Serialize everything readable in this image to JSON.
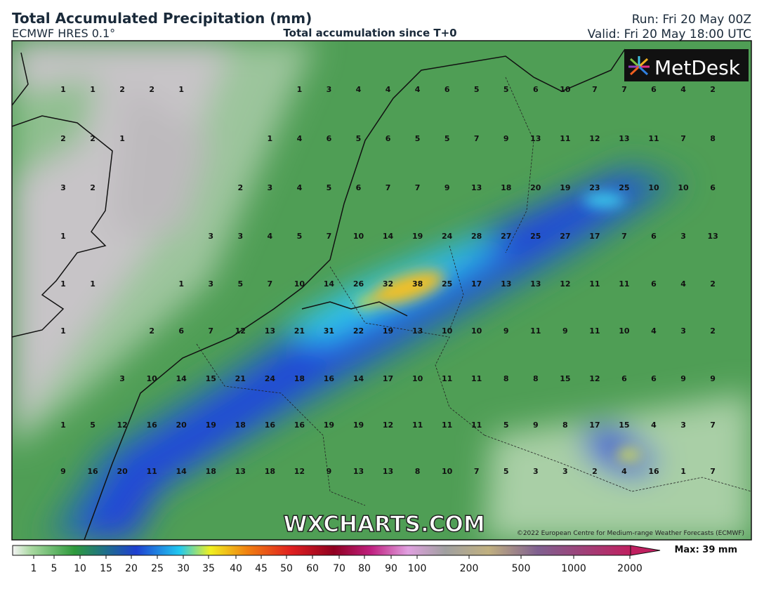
{
  "header": {
    "title": "Total Accumulated Precipitation (mm)",
    "model": "ECMWF HRES 0.1°",
    "subtitle": "Total accumulation since T+0",
    "run": "Run: Fri 20 May 00Z",
    "valid": "Valid: Fri 20 May 18:00 UTC"
  },
  "logo": "MetDesk",
  "watermark": "WXCHARTS.COM",
  "copyright": "©2022 European Centre for Medium-range Weather Forecasts (ECMWF)",
  "grid_values": [
    [
      1,
      1,
      2,
      2,
      1,
      null,
      null,
      null,
      1,
      3,
      4,
      4,
      4,
      6,
      5,
      5,
      6,
      10,
      7,
      7,
      6,
      4,
      2
    ],
    [
      2,
      2,
      1,
      null,
      null,
      null,
      null,
      1,
      4,
      6,
      5,
      6,
      5,
      5,
      7,
      9,
      13,
      11,
      12,
      13,
      11,
      7,
      8
    ],
    [
      3,
      2,
      null,
      null,
      null,
      null,
      2,
      3,
      4,
      5,
      6,
      7,
      7,
      9,
      13,
      18,
      20,
      19,
      23,
      25,
      10,
      10,
      6
    ],
    [
      1,
      null,
      null,
      null,
      null,
      3,
      3,
      4,
      5,
      7,
      10,
      14,
      19,
      24,
      28,
      27,
      25,
      27,
      17,
      7,
      6,
      3,
      13
    ],
    [
      1,
      1,
      null,
      null,
      1,
      3,
      5,
      7,
      10,
      14,
      26,
      32,
      38,
      25,
      17,
      13,
      13,
      12,
      11,
      11,
      6,
      4,
      2
    ],
    [
      1,
      null,
      null,
      2,
      6,
      7,
      12,
      13,
      21,
      31,
      22,
      19,
      13,
      10,
      10,
      9,
      11,
      9,
      11,
      10,
      4,
      3,
      2
    ],
    [
      null,
      null,
      3,
      10,
      14,
      15,
      21,
      24,
      18,
      16,
      14,
      17,
      10,
      11,
      11,
      8,
      8,
      15,
      12,
      6,
      6,
      9,
      9
    ],
    [
      1,
      5,
      12,
      16,
      20,
      19,
      18,
      16,
      16,
      19,
      19,
      12,
      11,
      11,
      11,
      5,
      9,
      8,
      17,
      15,
      4,
      3,
      7
    ],
    [
      9,
      16,
      20,
      11,
      14,
      18,
      13,
      18,
      12,
      9,
      13,
      13,
      8,
      10,
      7,
      5,
      3,
      3,
      2,
      4,
      16,
      1,
      7
    ]
  ],
  "colorbar": {
    "ticks": [
      1,
      5,
      10,
      15,
      20,
      25,
      30,
      35,
      40,
      45,
      50,
      60,
      70,
      80,
      90,
      100,
      200,
      500,
      1000,
      2000
    ],
    "max_label": "Max: 39 mm"
  }
}
